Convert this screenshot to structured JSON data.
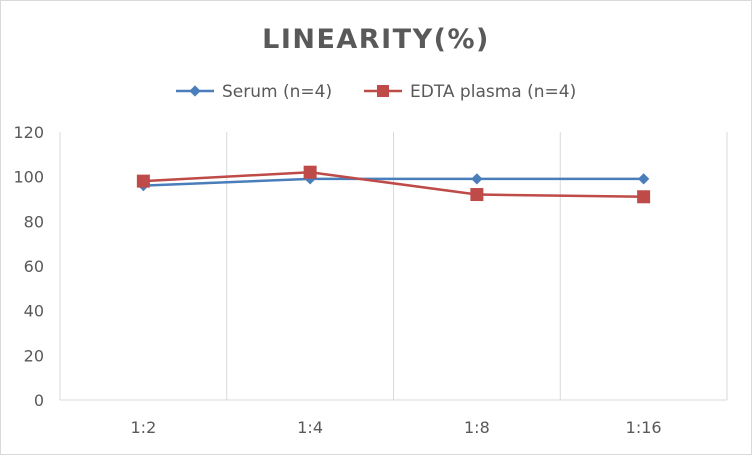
{
  "chart_data": {
    "type": "line",
    "title": "LINEARITY(%)",
    "categories": [
      "1:2",
      "1:4",
      "1:8",
      "1:16"
    ],
    "series": [
      {
        "name": "Serum (n=4)",
        "values": [
          96,
          99,
          99,
          99
        ],
        "color": "#4a7ebb",
        "marker": "diamond"
      },
      {
        "name": "EDTA plasma (n=4)",
        "values": [
          98,
          102,
          92,
          91
        ],
        "color": "#be4b48",
        "marker": "square"
      }
    ],
    "yticks": [
      "0",
      "20",
      "40",
      "60",
      "80",
      "100",
      "120"
    ],
    "ylim": [
      0,
      120
    ],
    "xlabel": "",
    "ylabel": "",
    "grid": "vertical",
    "legend": "top-center"
  }
}
